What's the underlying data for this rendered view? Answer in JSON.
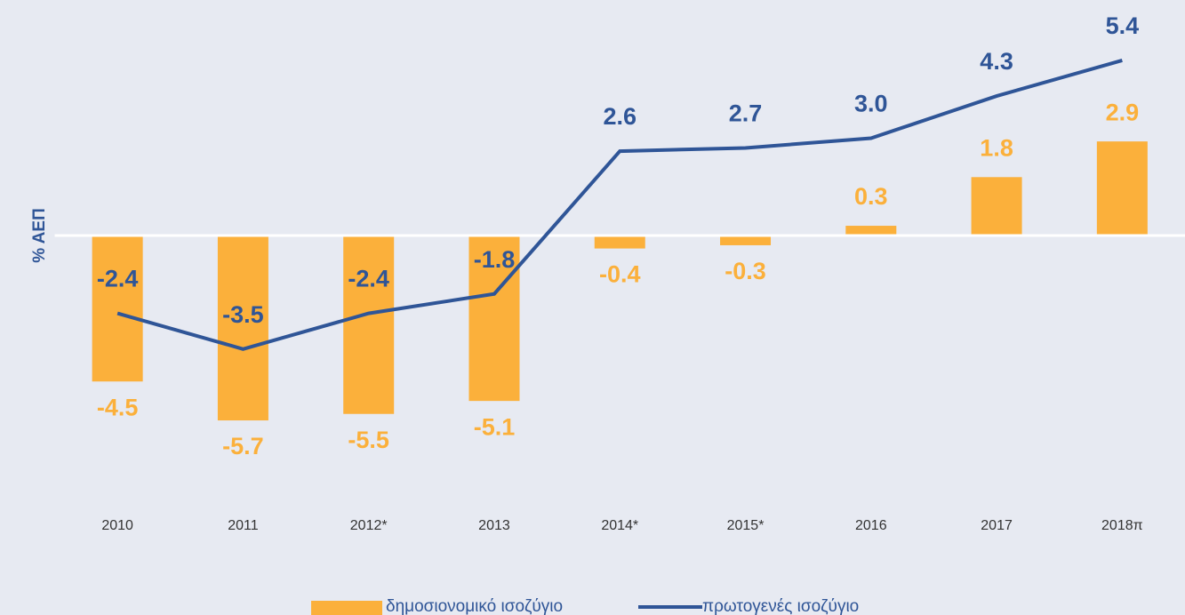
{
  "chart_data": {
    "type": "bar_line",
    "y_label": "% ΑΕΠ",
    "categories": [
      "2010",
      "2011",
      "2012*",
      "2013",
      "2014*",
      "2015*",
      "2016",
      "2017",
      "2018π"
    ],
    "series": [
      {
        "name": "δημοσιονομικό ισοζύγιο",
        "type": "bar",
        "color": "#fbb03b",
        "values": [
          -4.5,
          -5.7,
          -5.5,
          -5.1,
          -0.4,
          -0.3,
          0.3,
          1.8,
          2.9
        ],
        "value_labels": [
          "-4.5",
          "-5.7",
          "-5.5",
          "-5.1",
          "-0.4",
          "-0.3",
          "0.3",
          "1.8",
          "2.9"
        ]
      },
      {
        "name": "πρωτογενές ισοζύγιο",
        "type": "line",
        "color": "#2f5597",
        "values": [
          -2.4,
          -3.5,
          -2.4,
          -1.8,
          2.6,
          2.7,
          3.0,
          4.3,
          5.4
        ],
        "value_labels": [
          "-2.4",
          "-3.5",
          "-2.4",
          "-1.8",
          "2.6",
          "2.7",
          "3.0",
          "4.3",
          "5.4"
        ]
      }
    ],
    "ylim": [
      -8,
      7
    ]
  }
}
